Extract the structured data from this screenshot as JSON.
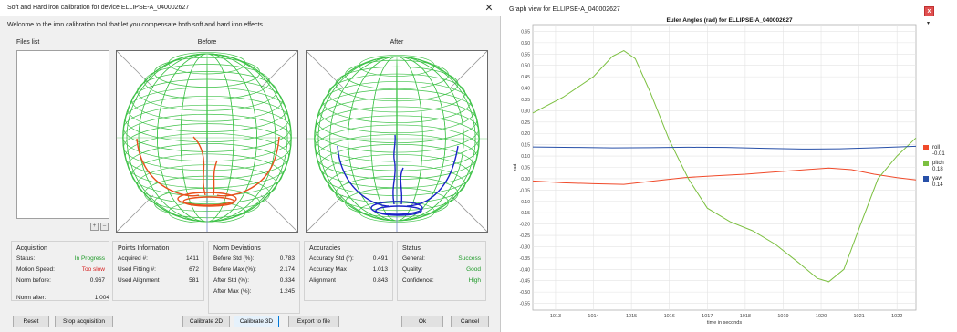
{
  "dialog": {
    "title": "Soft and Hard iron calibration for device ELLIPSE-A_040002627",
    "close": "✕",
    "welcome": "Welcome to the iron calibration tool that let you compensate both soft and hard iron effects.",
    "files_label": "Files list",
    "files_add": "+",
    "files_remove": "–",
    "before_label": "Before",
    "after_label": "After",
    "colors": {
      "wire": "#1fb82a",
      "before_pts": "#e8501c",
      "after_pts": "#1a22c8",
      "axis": "#7788cc"
    }
  },
  "acquisition": {
    "title": "Acquisition",
    "status_label": "Status:",
    "status_value": "In Progress",
    "speed_label": "Motion Speed:",
    "speed_value": "Too slow",
    "norm_before_label": "Norm before:",
    "norm_before_value": "0.967",
    "norm_after_label": "Norm after:",
    "norm_after_value": "1.004"
  },
  "points": {
    "title": "Points Information",
    "acquired_label": "Acquired #:",
    "acquired_value": "1411",
    "fitting_label": "Used Fitting #:",
    "fitting_value": "672",
    "alignment_label": "Used Alignment",
    "alignment_value": "581"
  },
  "norm_dev": {
    "title": "Norm Deviations",
    "before_std_label": "Before Std (%):",
    "before_std_value": "0.783",
    "before_max_label": "Before Max (%):",
    "before_max_value": "2.174",
    "after_std_label": "After Std (%):",
    "after_std_value": "0.334",
    "after_max_label": "After Max (%):",
    "after_max_value": "1.245"
  },
  "accuracies": {
    "title": "Accuracies",
    "acc_std_label": "Accuracy Std (°):",
    "acc_std_value": "0.491",
    "acc_max_label": "Accuracy Max",
    "acc_max_value": "1.013",
    "align_label": "Alignment",
    "align_value": "0.843"
  },
  "status": {
    "title": "Status",
    "general_label": "General:",
    "general_value": "Success",
    "quality_label": "Quality:",
    "quality_value": "Good",
    "confidence_label": "Confidence:",
    "confidence_value": "High"
  },
  "buttons": {
    "reset": "Reset",
    "stop": "Stop acquisition",
    "cal2d": "Calibrate 2D",
    "cal3d": "Calibrate 3D",
    "export": "Export to file",
    "ok": "Ok",
    "cancel": "Cancel"
  },
  "graph_window": {
    "title": "Graph view for ELLIPSE-A_040002627",
    "close": "x",
    "menu": "▾"
  },
  "chart_data": {
    "type": "line",
    "title": "Euler Angles (rad) for ELLIPSE-A_040002627",
    "xlabel": "time in seconds",
    "ylabel": "rad",
    "xlim": [
      1012.4,
      1022.5
    ],
    "ylim": [
      -0.58,
      0.68
    ],
    "x_ticks": [
      1013,
      1014,
      1015,
      1016,
      1017,
      1018,
      1019,
      1020,
      1021,
      1022
    ],
    "y_ticks": [
      0.65,
      0.6,
      0.55,
      0.5,
      0.45,
      0.4,
      0.35,
      0.3,
      0.25,
      0.2,
      0.15,
      0.1,
      0.05,
      0.0,
      -0.05,
      -0.1,
      -0.15,
      -0.2,
      -0.25,
      -0.3,
      -0.35,
      -0.4,
      -0.45,
      -0.5,
      -0.55
    ],
    "grid": true,
    "legend_position": "right",
    "series": [
      {
        "name": "roll",
        "color": "#f04a2a",
        "legend_value": "-0.01",
        "x": [
          1012.4,
          1013.2,
          1014.0,
          1014.8,
          1015.6,
          1016.4,
          1017.2,
          1018.0,
          1018.8,
          1019.6,
          1020.2,
          1020.8,
          1021.4,
          1022.0,
          1022.5
        ],
        "y": [
          -0.01,
          -0.018,
          -0.022,
          -0.025,
          -0.01,
          0.005,
          0.013,
          0.02,
          0.03,
          0.04,
          0.047,
          0.04,
          0.02,
          0.005,
          -0.005
        ]
      },
      {
        "name": "pitch",
        "color": "#7cc040",
        "legend_value": "0.18",
        "x": [
          1012.4,
          1013.2,
          1014.0,
          1014.5,
          1014.8,
          1015.1,
          1015.5,
          1016.0,
          1016.5,
          1017.0,
          1017.6,
          1018.2,
          1018.8,
          1019.4,
          1019.9,
          1020.2,
          1020.6,
          1021.0,
          1021.5,
          1022.0,
          1022.5
        ],
        "y": [
          0.29,
          0.36,
          0.45,
          0.54,
          0.565,
          0.53,
          0.38,
          0.17,
          0.0,
          -0.13,
          -0.19,
          -0.23,
          -0.29,
          -0.37,
          -0.44,
          -0.455,
          -0.4,
          -0.22,
          0.0,
          0.1,
          0.18
        ]
      },
      {
        "name": "yaw",
        "color": "#2850a8",
        "legend_value": "0.14",
        "x": [
          1012.4,
          1013.5,
          1014.5,
          1015.5,
          1016.5,
          1017.5,
          1018.5,
          1019.5,
          1020.5,
          1021.5,
          1022.5
        ],
        "y": [
          0.14,
          0.138,
          0.136,
          0.137,
          0.139,
          0.138,
          0.134,
          0.131,
          0.132,
          0.137,
          0.143
        ]
      }
    ]
  }
}
